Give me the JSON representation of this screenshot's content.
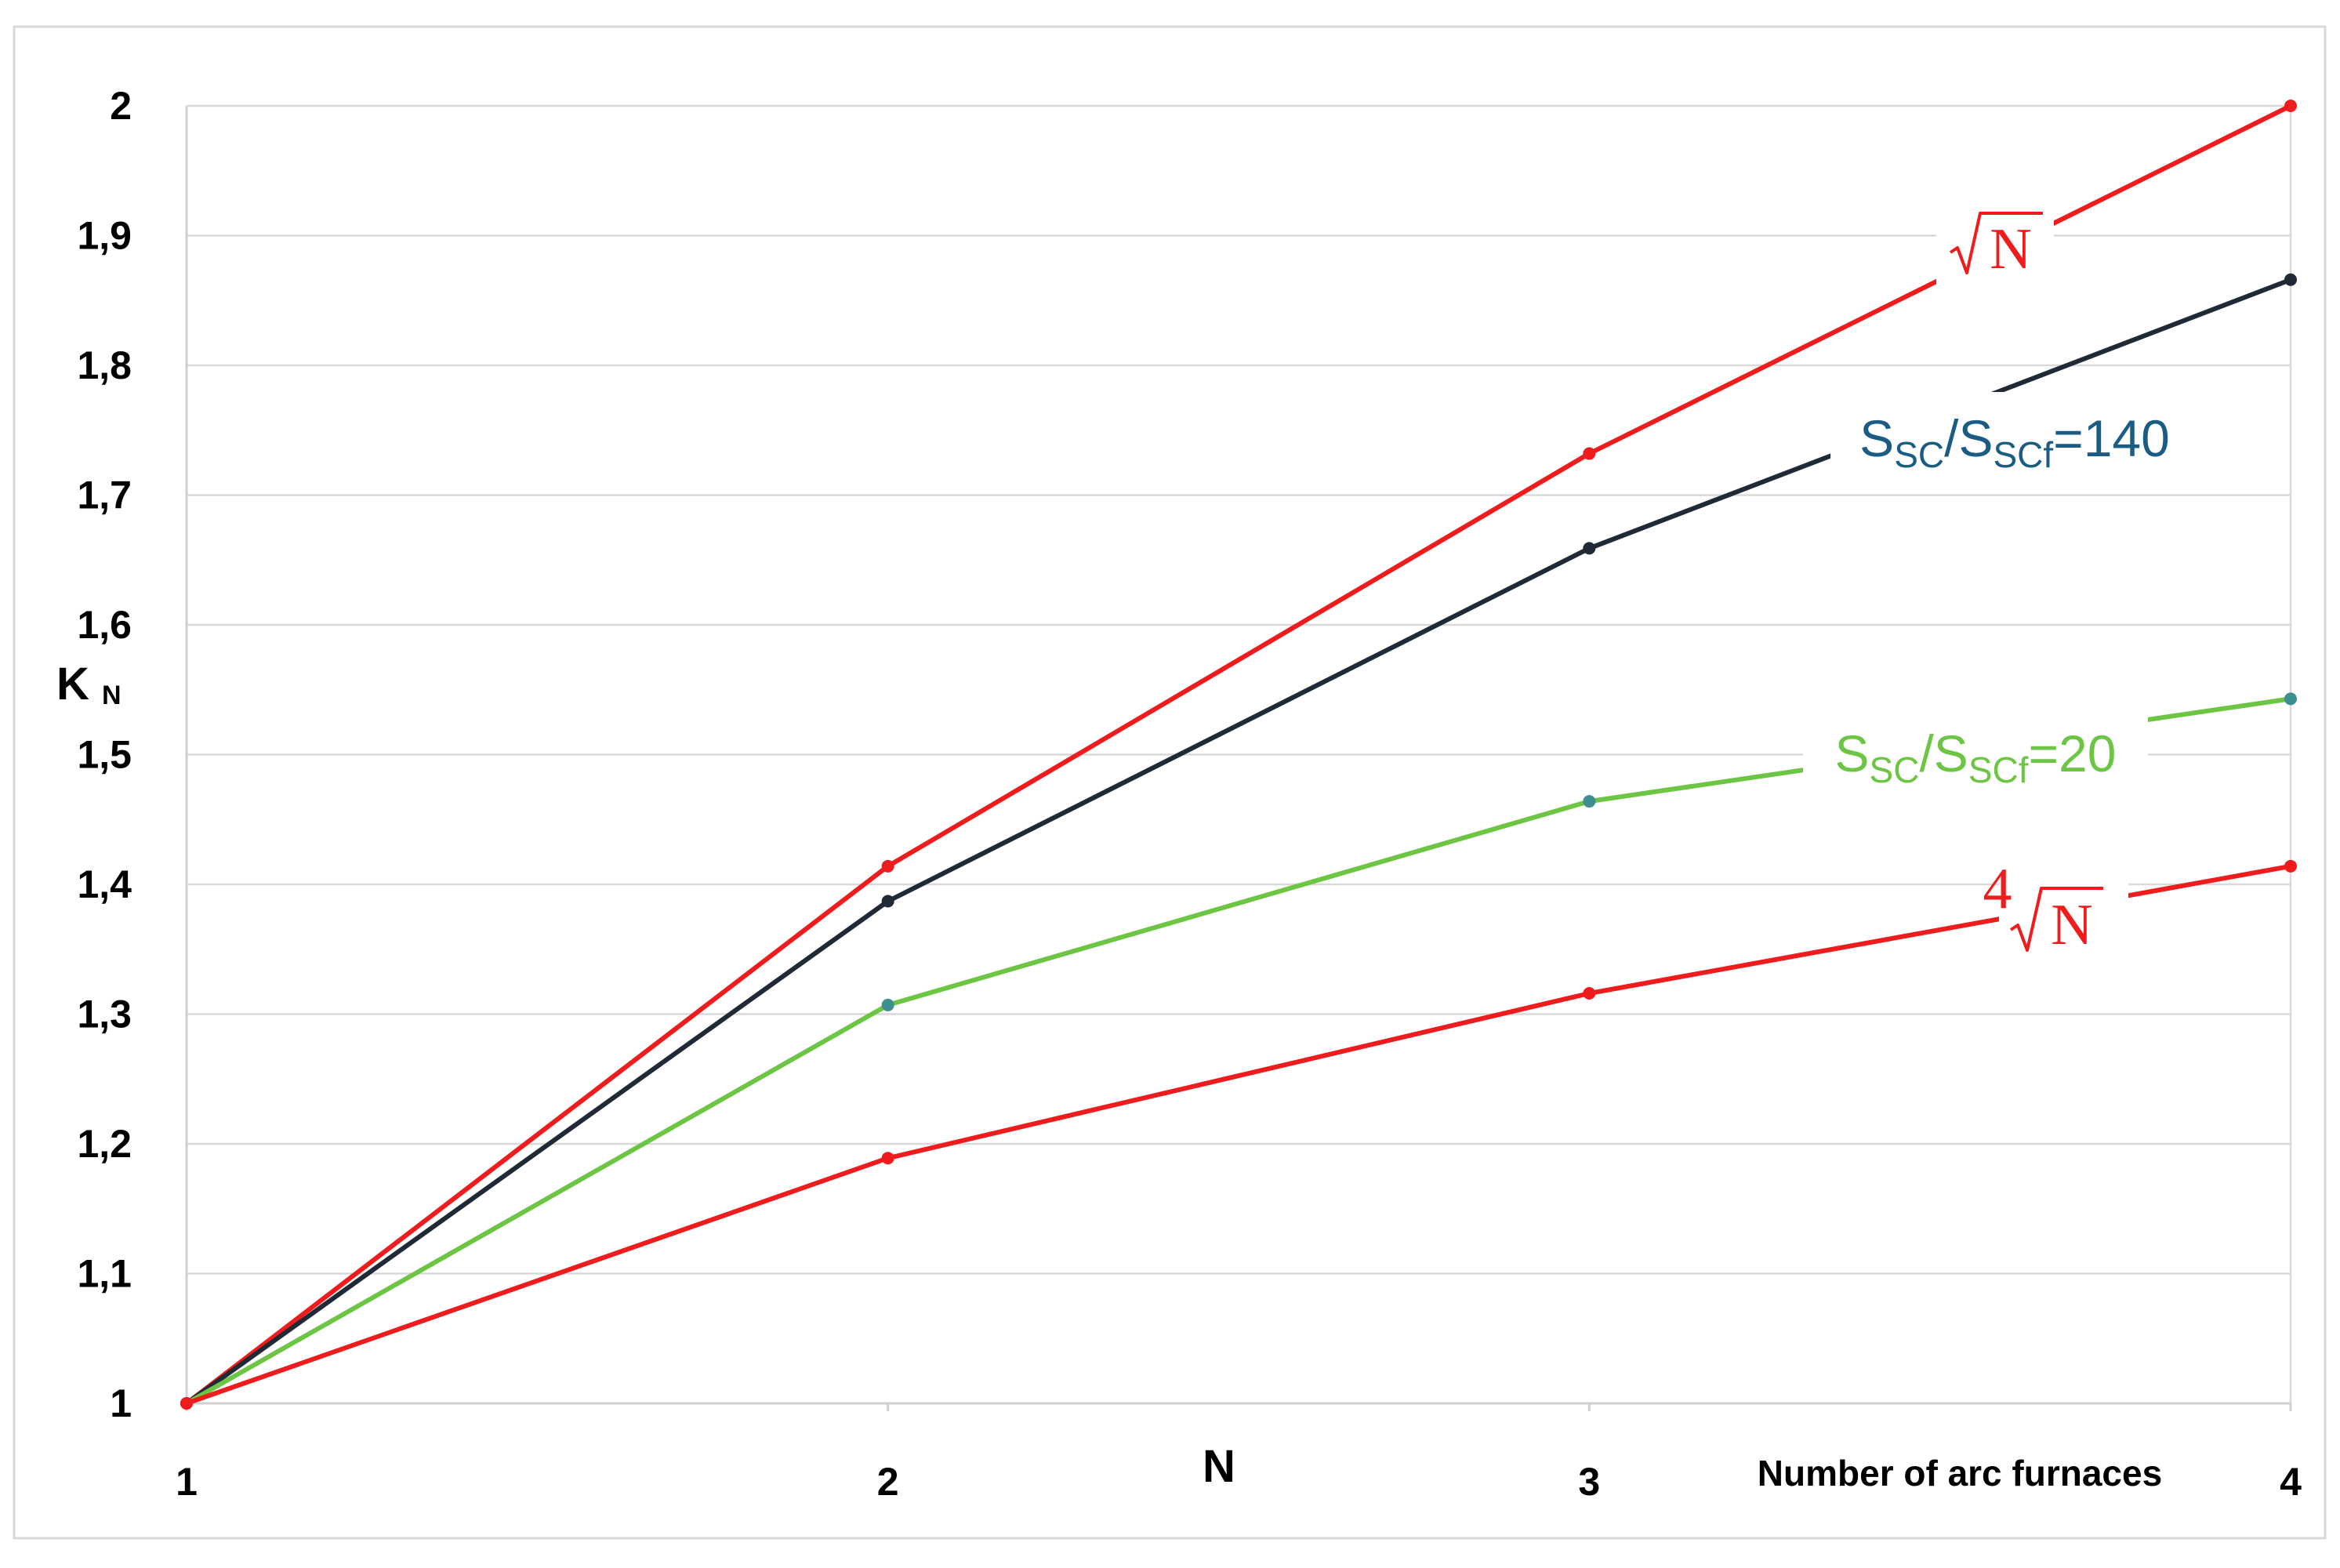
{
  "chart_data": {
    "type": "line",
    "xlabel": "N",
    "xlabel_note": "Number of arc furnaces",
    "ylabel": "K",
    "ylabel_subscript": "N",
    "x": [
      1,
      2,
      3,
      4
    ],
    "x_tick_labels": [
      "1",
      "2",
      "3",
      "4"
    ],
    "y_tick_labels": [
      "1",
      "1,1",
      "1,2",
      "1,3",
      "1,4",
      "1,5",
      "1,6",
      "1,7",
      "1,8",
      "1,9",
      "2"
    ],
    "y_ticks": [
      1,
      1.1,
      1.2,
      1.3,
      1.4,
      1.5,
      1.6,
      1.7,
      1.8,
      1.9,
      2
    ],
    "xlim": [
      1,
      4
    ],
    "ylim": [
      1,
      2
    ],
    "grid": "horizontal",
    "series": [
      {
        "id": "sqrt",
        "label_kind": "sqrt",
        "label_radicand": "N",
        "color": "#ee1c1c",
        "values": [
          1,
          1.414,
          1.732,
          2.0
        ]
      },
      {
        "id": "ratio140",
        "label_kind": "ratio",
        "label_s": "S",
        "label_sub1": "SC",
        "label_slash": "/S",
        "label_sub2": "SCf",
        "label_value": "=140",
        "color": "#1f2a36",
        "label_color": "#1b5c85",
        "values": [
          1,
          1.387,
          1.659,
          1.866
        ]
      },
      {
        "id": "ratio20",
        "label_kind": "ratio",
        "label_s": "S",
        "label_sub1": "SC",
        "label_slash": "/S",
        "label_sub2": "SCf",
        "label_value": "=20",
        "color": "#6cc644",
        "label_color": "#6cc644",
        "marker_color": "#3e9090",
        "values": [
          1,
          1.307,
          1.464,
          1.543
        ]
      },
      {
        "id": "root4",
        "label_kind": "root4",
        "label_index": "4",
        "label_radicand": "N",
        "color": "#ee1c1c",
        "values": [
          1,
          1.189,
          1.316,
          1.414
        ]
      }
    ]
  }
}
